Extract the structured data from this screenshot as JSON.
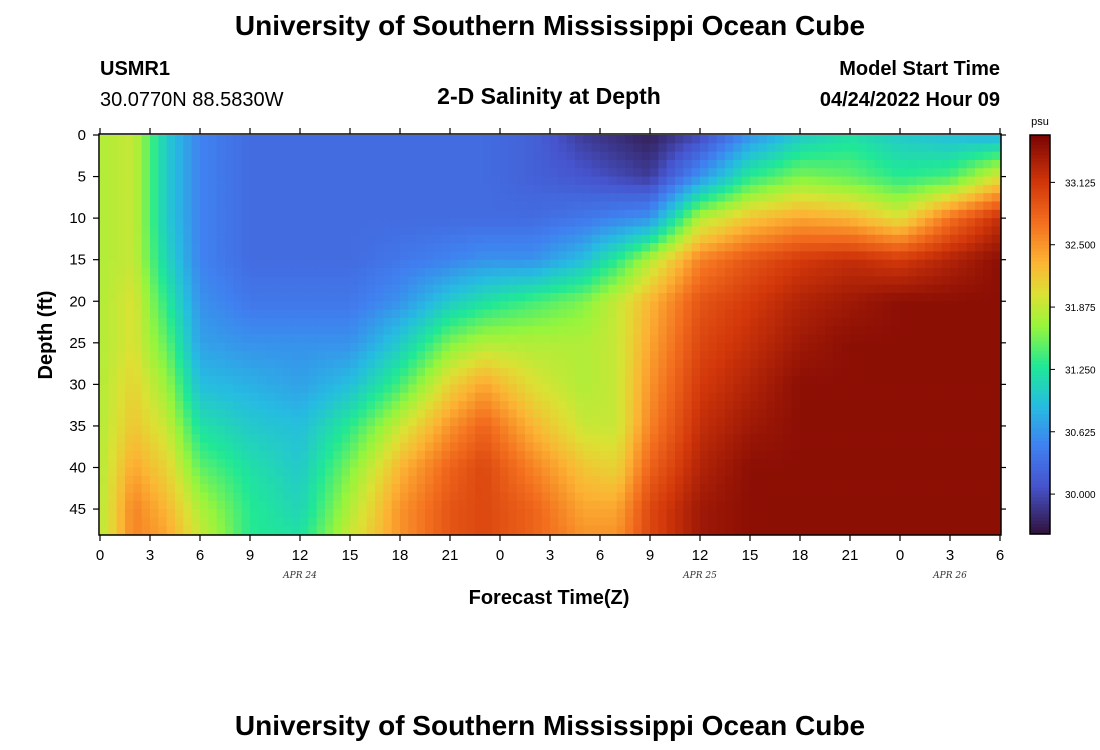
{
  "page": {
    "title": "University of Southern Mississippi Ocean Cube",
    "station": "USMR1",
    "coords": "30.0770N  88.5830W",
    "subtitle": "2-D Salinity at Depth",
    "start_label": "Model Start Time",
    "start_value": "04/24/2022 Hour 09",
    "bottom_title": "University of Southern Mississippi Ocean Cube"
  },
  "chart_data": {
    "type": "heatmap",
    "title": "2-D Salinity at Depth",
    "xlabel": "Forecast Time(Z)",
    "ylabel": "Depth (ft)",
    "x_hours": [
      0,
      54
    ],
    "y_range": [
      0,
      48
    ],
    "y_ticks": [
      0,
      5,
      10,
      15,
      20,
      25,
      30,
      35,
      40,
      45
    ],
    "x_ticks": [
      {
        "h": 0,
        "label": "0"
      },
      {
        "h": 3,
        "label": "3"
      },
      {
        "h": 6,
        "label": "6"
      },
      {
        "h": 9,
        "label": "9"
      },
      {
        "h": 12,
        "label": "12"
      },
      {
        "h": 15,
        "label": "15"
      },
      {
        "h": 18,
        "label": "18"
      },
      {
        "h": 21,
        "label": "21"
      },
      {
        "h": 24,
        "label": "0"
      },
      {
        "h": 27,
        "label": "3"
      },
      {
        "h": 30,
        "label": "6"
      },
      {
        "h": 33,
        "label": "9"
      },
      {
        "h": 36,
        "label": "12"
      },
      {
        "h": 39,
        "label": "15"
      },
      {
        "h": 42,
        "label": "18"
      },
      {
        "h": 45,
        "label": "21"
      },
      {
        "h": 48,
        "label": "0"
      },
      {
        "h": 51,
        "label": "3"
      },
      {
        "h": 54,
        "label": "6"
      }
    ],
    "date_labels": [
      {
        "h": 12,
        "label": "APR 24"
      },
      {
        "h": 36,
        "label": "APR 25"
      },
      {
        "h": 51,
        "label": "APR 26"
      }
    ],
    "colorbar": {
      "unit": "psu",
      "min": 29.6,
      "max": 33.6,
      "ticks": [
        "33.125",
        "32.500",
        "31.875",
        "31.250",
        "30.625",
        "30.000"
      ],
      "tick_values": [
        33.125,
        32.5,
        31.875,
        31.25,
        30.625,
        30.0
      ]
    },
    "x_points": [
      0,
      2,
      4,
      6,
      9,
      12,
      15,
      18,
      21,
      23,
      26,
      29,
      31,
      33,
      36,
      39,
      42,
      45,
      48,
      51,
      54
    ],
    "depth_points": [
      0,
      5,
      10,
      15,
      20,
      25,
      30,
      35,
      40,
      45,
      48
    ],
    "salinity": [
      [
        31.8,
        31.8,
        31.8,
        31.8,
        31.8,
        31.8,
        31.8,
        31.8,
        31.8,
        31.8,
        31.8
      ],
      [
        31.9,
        31.9,
        31.9,
        31.9,
        32.0,
        32.0,
        32.1,
        32.2,
        32.4,
        32.6,
        32.6
      ],
      [
        31.0,
        31.0,
        31.0,
        31.1,
        31.3,
        31.5,
        31.7,
        31.9,
        32.1,
        32.3,
        32.4
      ],
      [
        30.5,
        30.5,
        30.5,
        30.5,
        30.6,
        30.7,
        30.9,
        31.2,
        31.5,
        31.8,
        31.9
      ],
      [
        30.3,
        30.3,
        30.3,
        30.3,
        30.4,
        30.6,
        30.8,
        31.0,
        31.2,
        31.3,
        31.3
      ],
      [
        30.3,
        30.3,
        30.3,
        30.3,
        30.4,
        30.6,
        30.7,
        30.9,
        31.0,
        31.1,
        31.2
      ],
      [
        30.3,
        30.3,
        30.3,
        30.3,
        30.4,
        30.6,
        30.9,
        31.3,
        31.6,
        31.8,
        31.9
      ],
      [
        30.3,
        30.3,
        30.3,
        30.4,
        30.6,
        31.0,
        31.4,
        31.9,
        32.3,
        32.5,
        32.5
      ],
      [
        30.3,
        30.3,
        30.3,
        30.5,
        31.0,
        31.6,
        32.1,
        32.5,
        32.8,
        32.9,
        32.9
      ],
      [
        30.3,
        30.3,
        30.3,
        30.6,
        31.2,
        31.8,
        32.4,
        32.8,
        33.0,
        33.0,
        33.0
      ],
      [
        30.2,
        30.2,
        30.3,
        30.6,
        31.4,
        31.8,
        32.0,
        32.3,
        32.6,
        32.8,
        32.8
      ],
      [
        29.9,
        30.1,
        30.4,
        30.9,
        31.6,
        31.8,
        31.8,
        31.9,
        32.2,
        32.4,
        32.5
      ],
      [
        29.8,
        30.0,
        30.5,
        31.3,
        31.9,
        31.9,
        31.9,
        31.9,
        32.1,
        32.4,
        32.5
      ],
      [
        29.7,
        29.9,
        30.6,
        31.8,
        32.3,
        32.4,
        32.5,
        32.6,
        32.8,
        33.0,
        33.0
      ],
      [
        30.0,
        30.6,
        31.8,
        32.6,
        32.9,
        33.0,
        33.1,
        33.2,
        33.3,
        33.4,
        33.4
      ],
      [
        30.6,
        31.3,
        32.2,
        32.9,
        33.1,
        33.2,
        33.3,
        33.4,
        33.5,
        33.5,
        33.5
      ],
      [
        31.0,
        31.6,
        32.4,
        33.1,
        33.3,
        33.4,
        33.5,
        33.5,
        33.5,
        33.5,
        33.5
      ],
      [
        31.2,
        31.5,
        32.3,
        33.2,
        33.4,
        33.5,
        33.5,
        33.5,
        33.5,
        33.5,
        33.5
      ],
      [
        31.0,
        31.3,
        32.0,
        33.1,
        33.5,
        33.5,
        33.5,
        33.5,
        33.5,
        33.5,
        33.5
      ],
      [
        30.9,
        31.4,
        32.7,
        33.3,
        33.5,
        33.5,
        33.5,
        33.5,
        33.5,
        33.5,
        33.5
      ],
      [
        30.8,
        32.0,
        33.2,
        33.5,
        33.5,
        33.5,
        33.5,
        33.5,
        33.5,
        33.5,
        33.5
      ]
    ]
  }
}
